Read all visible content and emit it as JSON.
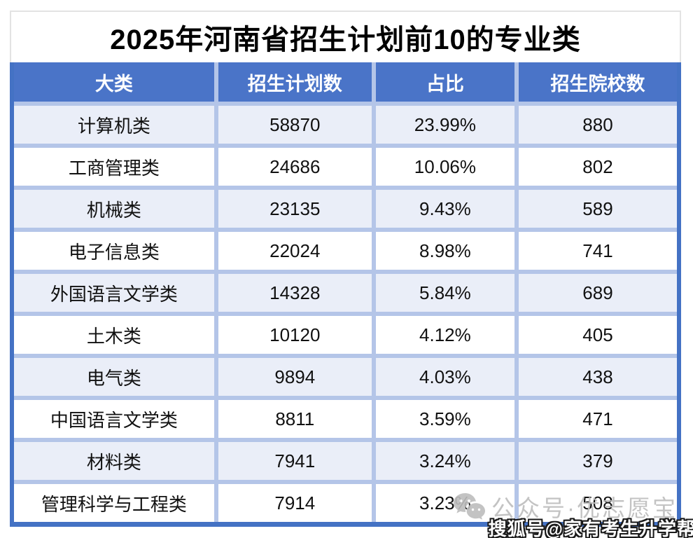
{
  "title": "2025年河南省招生计划前10的专业类",
  "chart_data": {
    "type": "table",
    "title": "2025年河南省招生计划前10的专业类",
    "columns": [
      "大类",
      "招生计划数",
      "占比",
      "招生院校数"
    ],
    "rows": [
      [
        "计算机类",
        "58870",
        "23.99%",
        "880"
      ],
      [
        "工商管理类",
        "24686",
        "10.06%",
        "802"
      ],
      [
        "机械类",
        "23135",
        "9.43%",
        "589"
      ],
      [
        "电子信息类",
        "22024",
        "8.98%",
        "741"
      ],
      [
        "外国语言文学类",
        "14328",
        "5.84%",
        "689"
      ],
      [
        "土木类",
        "10120",
        "4.12%",
        "405"
      ],
      [
        "电气类",
        "9894",
        "4.03%",
        "438"
      ],
      [
        "中国语言文学类",
        "8811",
        "3.59%",
        "471"
      ],
      [
        "材料类",
        "7941",
        "3.24%",
        "379"
      ],
      [
        "管理科学与工程类",
        "7914",
        "3.23%",
        "508"
      ]
    ]
  },
  "watermarks": {
    "wechat_label": "公众号·优志愿宝",
    "sohu_label": "搜狐号@家有考生升学帮"
  },
  "colors": {
    "header_bg": "#4A74C8",
    "outer_border": "#4472C4",
    "grid_line": "#B4C5E8",
    "row_alt_bg": "#EAEEF8",
    "row_bg": "#FFFFFF",
    "cell_text": "#111111",
    "title_border": "#E3E3E3",
    "watermark_gray": "#BDBDBD"
  }
}
